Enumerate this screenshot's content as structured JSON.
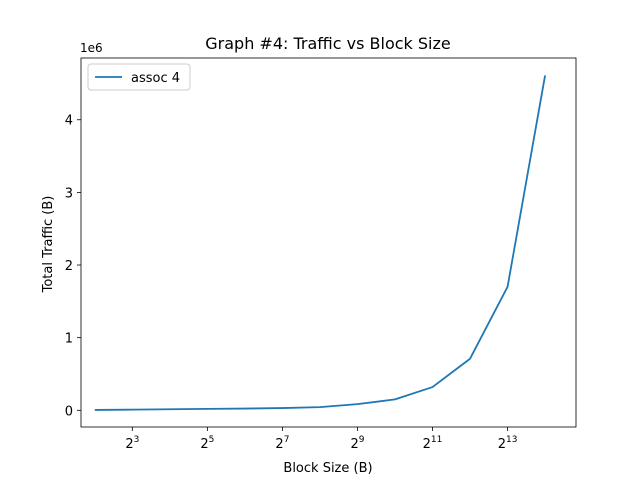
{
  "chart_data": {
    "type": "line",
    "title": "Graph #4: Traffic vs Block Size",
    "xlabel": "Block Size (B)",
    "ylabel": "Total Traffic (B)",
    "x_scale": "log2",
    "xlim": [
      3.1,
      29000
    ],
    "ylim": [
      -230000,
      4850000
    ],
    "y_offset_label": "1e6",
    "x_ticks": [
      {
        "value": 8,
        "base": "2",
        "exp": "3"
      },
      {
        "value": 32,
        "base": "2",
        "exp": "5"
      },
      {
        "value": 128,
        "base": "2",
        "exp": "7"
      },
      {
        "value": 512,
        "base": "2",
        "exp": "9"
      },
      {
        "value": 2048,
        "base": "2",
        "exp": "11"
      },
      {
        "value": 8192,
        "base": "2",
        "exp": "13"
      }
    ],
    "y_ticks": [
      {
        "value": 0,
        "label": "0"
      },
      {
        "value": 1000000,
        "label": "1"
      },
      {
        "value": 2000000,
        "label": "2"
      },
      {
        "value": 3000000,
        "label": "3"
      },
      {
        "value": 4000000,
        "label": "4"
      }
    ],
    "grid": false,
    "legend_position": "top-left",
    "series": [
      {
        "name": "assoc 4",
        "color": "#1f77b4",
        "x": [
          4,
          8,
          16,
          32,
          64,
          128,
          256,
          512,
          1024,
          2048,
          4096,
          8192,
          16384
        ],
        "y": [
          5000,
          9000,
          14000,
          19000,
          24000,
          31000,
          44000,
          85000,
          150000,
          320000,
          710000,
          1700000,
          4610000
        ]
      }
    ]
  }
}
